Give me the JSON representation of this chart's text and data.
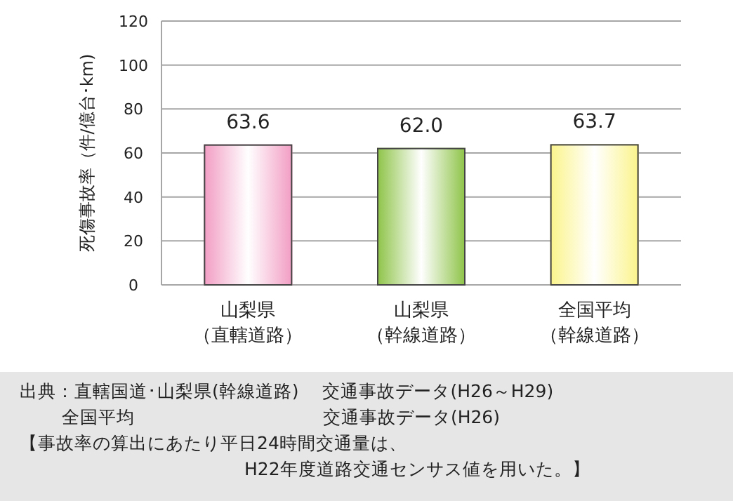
{
  "chart_data": {
    "type": "bar",
    "ylabel": "死傷事故率（件/億台･km)",
    "categories": [
      "山梨県（直轄道路）",
      "山梨県（幹線道路）",
      "全国平均（幹線道路）"
    ],
    "values": [
      63.6,
      62.0,
      63.7
    ],
    "colors": [
      "#f29ec4",
      "#8fc44a",
      "#fbf48c"
    ],
    "value_labels": [
      "63.6",
      "62.0",
      "63.7"
    ],
    "ylim": [
      0,
      120
    ],
    "yticks": [
      0,
      20,
      40,
      60,
      80,
      100,
      120
    ],
    "grid": "y",
    "annotations": [
      "出典：直轄国道･山梨県(幹線道路)　 交通事故データ(H26～H29)",
      "　　 全国平均　　　　　　　　　　 交通事故データ(H26)",
      "【事故率の算出にあたり平日24時間交通量は、",
      "　　　　　　　　　　　　 H22年度道路交通センサス値を用いた。】"
    ]
  }
}
